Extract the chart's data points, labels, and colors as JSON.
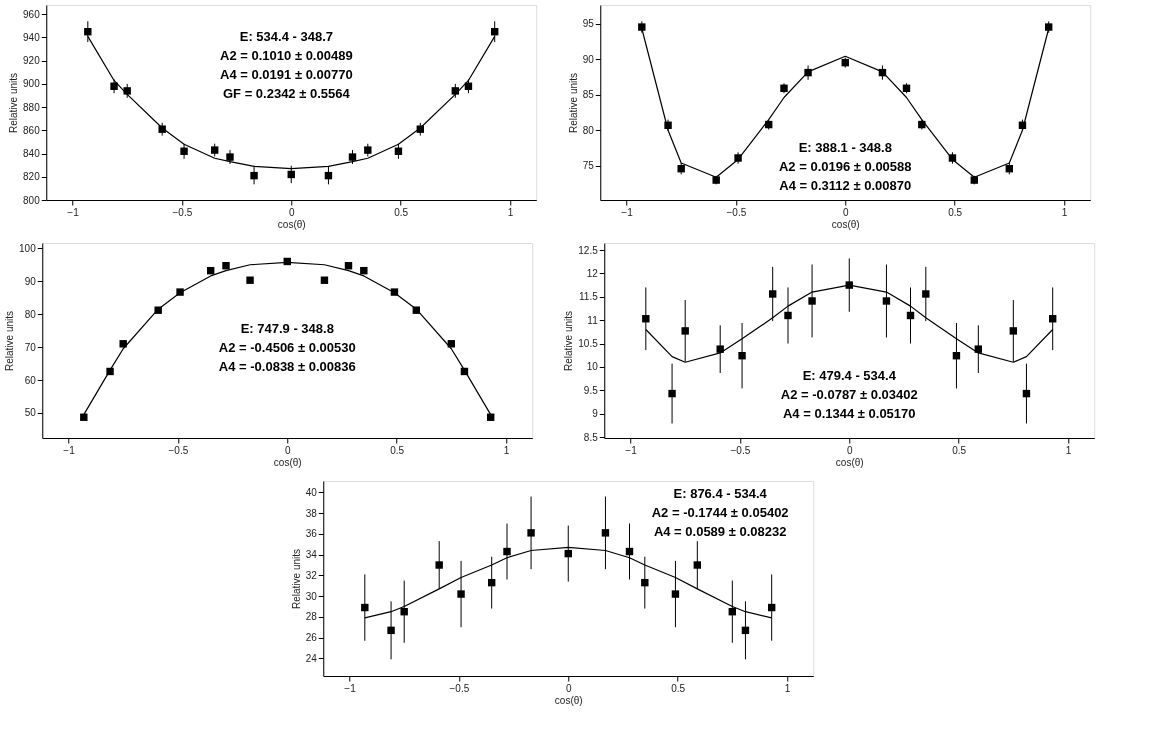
{
  "chart_data": [
    {
      "type": "scatter",
      "xlabel": "cos(θ)",
      "ylabel": "Relative units",
      "xlim": [
        -1.12,
        1.12
      ],
      "xticks": [
        -1,
        -0.5,
        0,
        0.5,
        1
      ],
      "ylim": [
        800,
        968
      ],
      "yticks": [
        800,
        820,
        840,
        860,
        880,
        900,
        920,
        940,
        960
      ],
      "grid": false,
      "x": [
        -0.93,
        -0.81,
        -0.75,
        -0.59,
        -0.49,
        -0.35,
        -0.28,
        -0.17,
        0,
        0.17,
        0.28,
        0.35,
        0.49,
        0.59,
        0.75,
        0.81,
        0.93
      ],
      "annotations": [
        "E:  534.4 -  348.7",
        "A2 =   0.1010 ±  0.00489",
        "A4 =   0.0191 ±  0.00770",
        "GF =   0.2342 ±   0.5564"
      ],
      "series": [
        {
          "marker": "square",
          "color": "#000000",
          "values": [
            945,
            898,
            894,
            861,
            842,
            843,
            837,
            821,
            822,
            821,
            837,
            843,
            842,
            861,
            894,
            898,
            945
          ],
          "errors": [
            9,
            6,
            6,
            5.5,
            6.5,
            5.5,
            6,
            7.5,
            7.5,
            7.5,
            6,
            5.5,
            6.5,
            5.5,
            6,
            6,
            9
          ]
        },
        {
          "type": "line",
          "color": "#000000",
          "values": [
            941,
            903,
            891,
            862,
            848,
            836,
            833,
            829,
            827,
            829,
            833,
            836,
            848,
            862,
            891,
            903,
            941
          ]
        }
      ]
    },
    {
      "type": "scatter",
      "xlabel": "cos(θ)",
      "ylabel": "Relative units",
      "xlim": [
        -1.12,
        1.12
      ],
      "xticks": [
        -1,
        -0.5,
        0,
        0.5,
        1
      ],
      "ylim": [
        70.2,
        97.6
      ],
      "yticks": [
        75,
        80,
        85,
        90,
        95
      ],
      "grid": false,
      "x": [
        -0.93,
        -0.81,
        -0.75,
        -0.59,
        -0.49,
        -0.35,
        -0.28,
        -0.17,
        0,
        0.17,
        0.28,
        0.35,
        0.49,
        0.59,
        0.75,
        0.81,
        0.93
      ],
      "annotations": [
        "E:  388.1 -  348.8",
        "A2 =   0.0196 ±  0.00588",
        "A4 =   0.3112 ±  0.00870"
      ],
      "series": [
        {
          "marker": "square",
          "color": "#000000",
          "values": [
            94.5,
            80.7,
            74.6,
            73.0,
            76.1,
            80.8,
            85.9,
            88.1,
            89.5,
            88.1,
            85.9,
            80.8,
            76.1,
            73.0,
            74.6,
            80.7,
            94.5
          ],
          "errors": [
            0.8,
            0.8,
            0.8,
            0.6,
            0.8,
            0.7,
            0.7,
            1.0,
            0.7,
            1.0,
            0.7,
            0.7,
            0.8,
            0.6,
            0.8,
            0.8,
            0.8
          ]
        },
        {
          "type": "line",
          "color": "#000000",
          "values": [
            94.3,
            80.0,
            75.4,
            73.4,
            75.9,
            81.5,
            84.6,
            88.2,
            90.4,
            88.2,
            84.6,
            81.5,
            75.9,
            73.4,
            75.4,
            80.0,
            94.3
          ]
        }
      ]
    },
    {
      "type": "scatter",
      "xlabel": "cos(θ)",
      "ylabel": "Relative units",
      "xlim": [
        -1.12,
        1.12
      ],
      "xticks": [
        -1,
        -0.5,
        0,
        0.5,
        1
      ],
      "ylim": [
        42.4,
        101.6
      ],
      "yticks": [
        50,
        60,
        70,
        80,
        90,
        100
      ],
      "grid": false,
      "x": [
        -0.93,
        -0.81,
        -0.75,
        -0.59,
        -0.49,
        -0.35,
        -0.28,
        -0.17,
        0,
        0.17,
        0.28,
        0.35,
        0.49,
        0.59,
        0.75,
        0.81,
        0.93
      ],
      "annotations": [
        "E:  747.9 -  348.8",
        "A2 =  -0.4506 ±  0.00530",
        "A4 =  -0.0838 ±  0.00836"
      ],
      "series": [
        {
          "marker": "square",
          "color": "#000000",
          "values": [
            48.7,
            62.6,
            71.0,
            81.2,
            86.7,
            93.2,
            94.7,
            90.3,
            96.0,
            90.3,
            94.7,
            93.2,
            86.7,
            81.2,
            71.0,
            62.6,
            48.7
          ],
          "errors": [
            0.5,
            0.5,
            0.5,
            0.5,
            0.5,
            0.5,
            0.5,
            0.9,
            0.5,
            0.9,
            0.5,
            0.5,
            0.5,
            0.5,
            0.5,
            0.5,
            0.5
          ]
        },
        {
          "type": "line",
          "color": "#000000",
          "values": [
            49.5,
            63,
            69.5,
            81.5,
            86.5,
            91.6,
            93.2,
            95,
            95.7,
            95,
            93.2,
            91.6,
            86.5,
            81.5,
            69.5,
            63,
            49.5
          ]
        }
      ]
    },
    {
      "type": "scatter",
      "xlabel": "cos(θ)",
      "ylabel": "Relative units",
      "xlim": [
        -1.12,
        1.12
      ],
      "xticks": [
        -1,
        -0.5,
        0,
        0.5,
        1
      ],
      "ylim": [
        8.48,
        12.65
      ],
      "yticks": [
        8.5,
        9,
        9.5,
        10,
        10.5,
        11,
        11.5,
        12,
        12.5
      ],
      "grid": false,
      "x": [
        -0.93,
        -0.81,
        -0.75,
        -0.59,
        -0.49,
        -0.35,
        -0.28,
        -0.17,
        0,
        0.17,
        0.28,
        0.35,
        0.49,
        0.59,
        0.75,
        0.81,
        0.93
      ],
      "annotations": [
        "E:  479.4 -  534.4",
        "A2 =  -0.0787 ±  0.03402",
        "A4 =   0.1344 ±  0.05170"
      ],
      "series": [
        {
          "marker": "square",
          "color": "#000000",
          "values": [
            11.03,
            9.43,
            10.77,
            10.38,
            10.24,
            11.56,
            11.1,
            11.41,
            11.75,
            11.41,
            11.1,
            11.56,
            10.24,
            10.38,
            10.77,
            9.43,
            11.03
          ],
          "errors": [
            0.67,
            0.64,
            0.66,
            0.51,
            0.7,
            0.58,
            0.6,
            0.78,
            0.57,
            0.78,
            0.6,
            0.58,
            0.7,
            0.51,
            0.66,
            0.64,
            0.67
          ]
        },
        {
          "type": "line",
          "color": "#000000",
          "values": [
            10.8,
            10.22,
            10.1,
            10.3,
            10.6,
            11.05,
            11.3,
            11.6,
            11.75,
            11.6,
            11.3,
            11.05,
            10.6,
            10.3,
            10.1,
            10.22,
            10.8
          ]
        }
      ]
    },
    {
      "type": "scatter",
      "xlabel": "cos(θ)",
      "ylabel": "Relative units",
      "xlim": [
        -1.12,
        1.12
      ],
      "xticks": [
        -1,
        -0.5,
        0,
        0.5,
        1
      ],
      "ylim": [
        22.3,
        41.1
      ],
      "yticks": [
        24,
        26,
        28,
        30,
        32,
        34,
        36,
        38,
        40
      ],
      "grid": false,
      "x": [
        -0.93,
        -0.81,
        -0.75,
        -0.59,
        -0.49,
        -0.35,
        -0.28,
        -0.17,
        0,
        0.17,
        0.28,
        0.35,
        0.49,
        0.59,
        0.75,
        0.81,
        0.93
      ],
      "annotations": [
        "E:  876.4 -  534.4",
        "A2 =  -0.1744 ±  0.05402",
        "A4 =   0.0589 ±  0.08232"
      ],
      "series": [
        {
          "marker": "square",
          "color": "#000000",
          "values": [
            28.9,
            26.7,
            28.5,
            33.0,
            30.2,
            31.3,
            34.3,
            36.1,
            34.1,
            36.1,
            34.3,
            31.3,
            30.2,
            33.0,
            28.5,
            26.7,
            28.9
          ],
          "errors": [
            3.2,
            2.8,
            3.0,
            2.3,
            3.2,
            2.5,
            2.7,
            3.5,
            2.7,
            3.5,
            2.7,
            2.5,
            3.2,
            2.3,
            3.0,
            2.8,
            3.2
          ]
        },
        {
          "type": "line",
          "color": "#000000",
          "values": [
            27.9,
            28.5,
            29.0,
            30.7,
            31.8,
            33.0,
            33.7,
            34.4,
            34.7,
            34.4,
            33.7,
            33.0,
            31.8,
            30.7,
            29.0,
            28.5,
            27.9
          ]
        }
      ]
    }
  ]
}
